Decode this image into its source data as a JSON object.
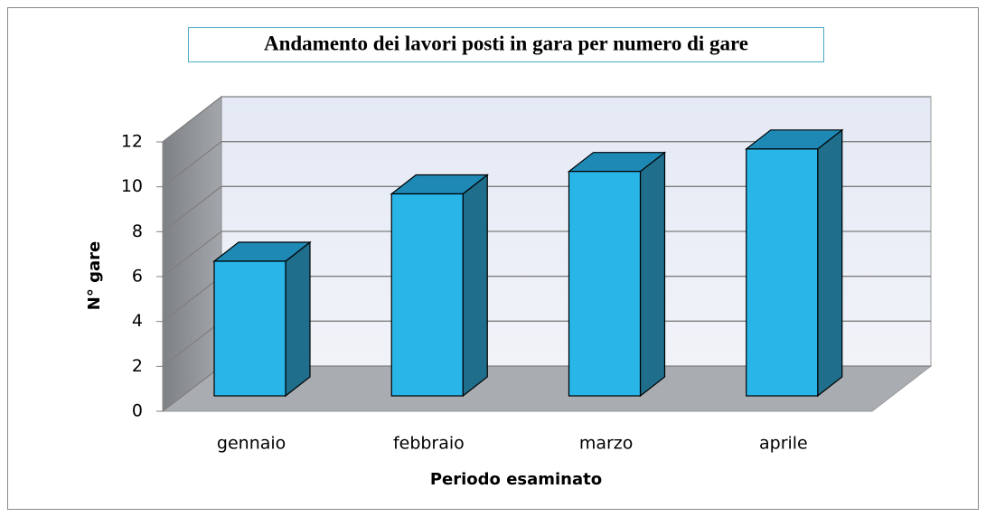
{
  "chart_data": {
    "type": "bar3d",
    "title": "Andamento dei lavori posti in gara per numero di gare",
    "categories": [
      "gennaio",
      "febbraio",
      "marzo",
      "aprile"
    ],
    "values": [
      6,
      9,
      10,
      11
    ],
    "color": "#29b5e8",
    "ylim": [
      0,
      12
    ],
    "yticks": [
      0,
      2,
      4,
      6,
      8,
      10,
      12
    ],
    "grid": true,
    "x_label": "Periodo esaminato",
    "y_label": "N° gare"
  }
}
